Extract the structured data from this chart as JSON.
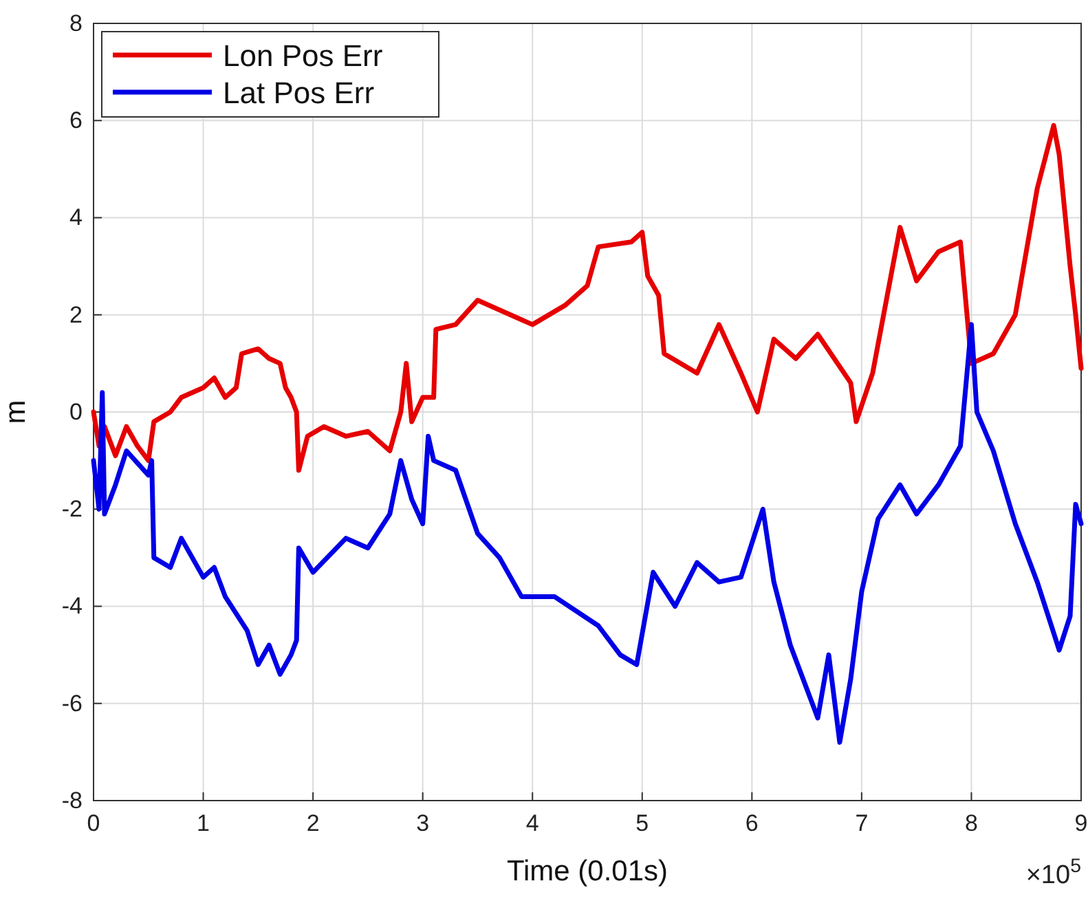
{
  "chart_data": {
    "type": "line",
    "xlabel": "Time (0.01s)",
    "ylabel": "m",
    "annotations": [
      "×10$^{5}$"
    ],
    "xlim": [
      0,
      9
    ],
    "xticks": [
      0,
      1,
      2,
      3,
      4,
      5,
      6,
      7,
      8,
      9
    ],
    "ylim": [
      -8,
      8
    ],
    "yticks": [
      -8,
      -6,
      -4,
      -2,
      0,
      2,
      4,
      6,
      8
    ],
    "grid": true,
    "legend": "top left",
    "line_style": "solid",
    "marker": "none",
    "series": [
      {
        "name": "Lon Pos Err",
        "color": "#e60000",
        "x": [
          0,
          0.05,
          0.1,
          0.2,
          0.3,
          0.4,
          0.5,
          0.55,
          0.7,
          0.8,
          1.0,
          1.1,
          1.2,
          1.3,
          1.35,
          1.5,
          1.6,
          1.7,
          1.75,
          1.8,
          1.85,
          1.87,
          1.95,
          2.1,
          2.3,
          2.5,
          2.7,
          2.8,
          2.85,
          2.9,
          3.0,
          3.1,
          3.12,
          3.3,
          3.5,
          3.8,
          4.0,
          4.3,
          4.5,
          4.6,
          4.9,
          5.0,
          5.05,
          5.15,
          5.2,
          5.5,
          5.7,
          5.9,
          6.05,
          6.2,
          6.4,
          6.6,
          6.9,
          6.95,
          7.1,
          7.2,
          7.35,
          7.5,
          7.7,
          7.9,
          8.0,
          8.2,
          8.4,
          8.6,
          8.75,
          8.8,
          8.9,
          8.95,
          9.0
        ],
        "values": [
          0,
          -0.7,
          -0.3,
          -0.9,
          -0.3,
          -0.7,
          -1.0,
          -0.2,
          0,
          0.3,
          0.5,
          0.7,
          0.3,
          0.5,
          1.2,
          1.3,
          1.1,
          1.0,
          0.5,
          0.3,
          0,
          -1.2,
          -0.5,
          -0.3,
          -0.5,
          -0.4,
          -0.8,
          0,
          1.0,
          -0.2,
          0.3,
          0.3,
          1.7,
          1.8,
          2.3,
          2.0,
          1.8,
          2.2,
          2.6,
          3.4,
          3.5,
          3.7,
          2.8,
          2.4,
          1.2,
          0.8,
          1.8,
          0.8,
          0,
          1.5,
          1.1,
          1.6,
          0.6,
          -0.2,
          0.8,
          2.0,
          3.8,
          2.7,
          3.3,
          3.5,
          1.0,
          1.2,
          2.0,
          4.6,
          5.9,
          5.3,
          3.0,
          2.0,
          0.9
        ]
      },
      {
        "name": "Lat Pos Err",
        "color": "#0000e6",
        "x": [
          0,
          0.05,
          0.08,
          0.1,
          0.2,
          0.3,
          0.5,
          0.53,
          0.55,
          0.7,
          0.8,
          1.0,
          1.1,
          1.2,
          1.4,
          1.5,
          1.6,
          1.7,
          1.8,
          1.85,
          1.87,
          2.0,
          2.3,
          2.5,
          2.7,
          2.8,
          2.9,
          3.0,
          3.05,
          3.1,
          3.3,
          3.5,
          3.7,
          3.9,
          4.2,
          4.6,
          4.8,
          4.95,
          5.1,
          5.3,
          5.5,
          5.7,
          5.9,
          6.1,
          6.2,
          6.35,
          6.6,
          6.7,
          6.8,
          6.9,
          7.0,
          7.15,
          7.35,
          7.5,
          7.7,
          7.9,
          8.0,
          8.05,
          8.2,
          8.4,
          8.6,
          8.8,
          8.9,
          8.95,
          9.0
        ],
        "values": [
          -1.0,
          -2.0,
          0.4,
          -2.1,
          -1.5,
          -0.8,
          -1.3,
          -1.0,
          -3.0,
          -3.2,
          -2.6,
          -3.4,
          -3.2,
          -3.8,
          -4.5,
          -5.2,
          -4.8,
          -5.4,
          -5.0,
          -4.7,
          -2.8,
          -3.3,
          -2.6,
          -2.8,
          -2.1,
          -1.0,
          -1.8,
          -2.3,
          -0.5,
          -1.0,
          -1.2,
          -2.5,
          -3.0,
          -3.8,
          -3.8,
          -4.4,
          -5.0,
          -5.2,
          -3.3,
          -4.0,
          -3.1,
          -3.5,
          -3.4,
          -2.0,
          -3.5,
          -4.8,
          -6.3,
          -5.0,
          -6.8,
          -5.5,
          -3.7,
          -2.2,
          -1.5,
          -2.1,
          -1.5,
          -0.7,
          1.8,
          0,
          -0.8,
          -2.3,
          -3.5,
          -4.9,
          -4.2,
          -1.9,
          -2.3
        ]
      }
    ]
  }
}
